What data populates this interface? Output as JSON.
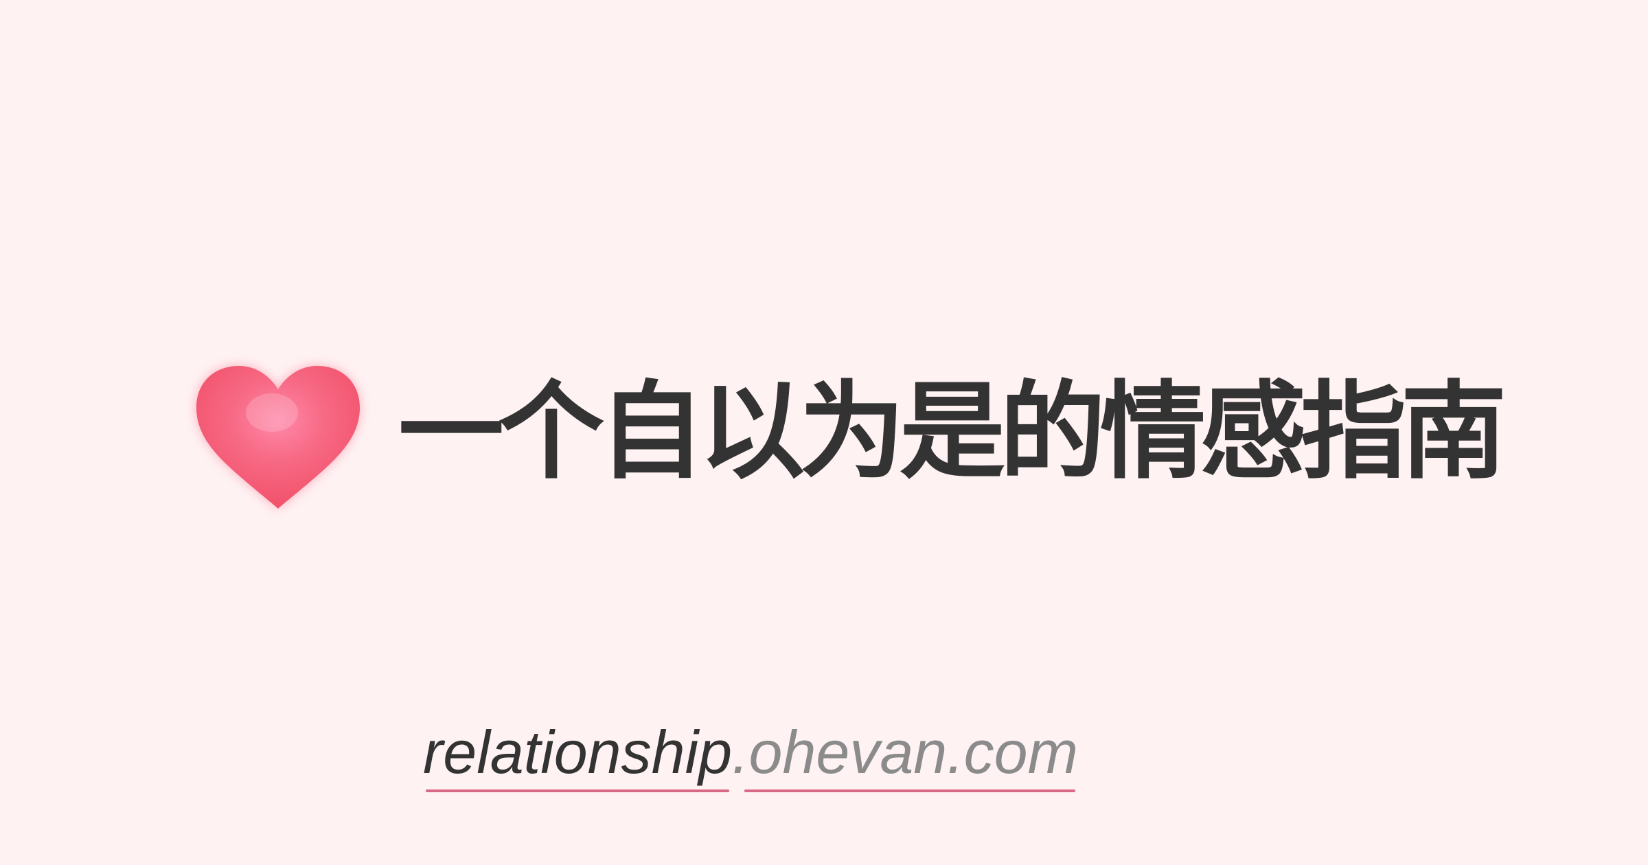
{
  "hero": {
    "icon": "heart-icon",
    "title": "一个自以为是的情感指南"
  },
  "domain": {
    "subdomain": "relationship",
    "site": ".ohevan.com"
  },
  "colors": {
    "background": "#fff2f3",
    "heart": "#f45b78",
    "text": "#333333",
    "muted": "#8b8b8b",
    "underline": "#d86a85"
  }
}
